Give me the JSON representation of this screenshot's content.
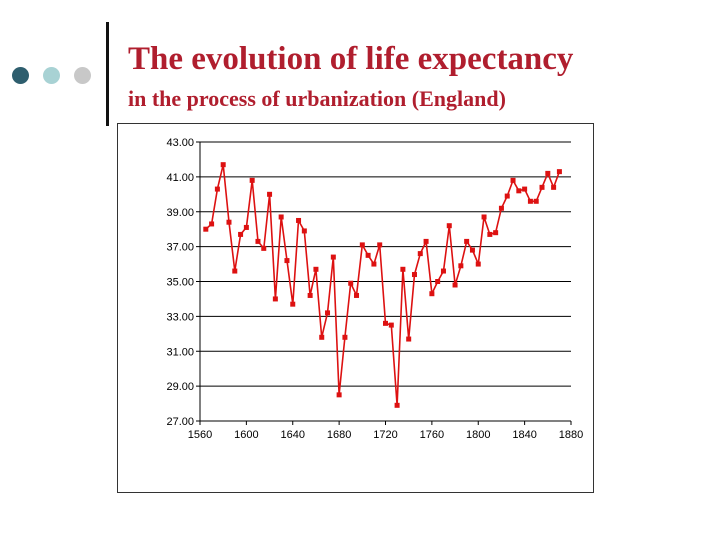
{
  "slide": {
    "title": "The evolution of life expectancy",
    "subtitle": "in the process of urbanization (England)",
    "accent_color": "#b01e2e",
    "bullet_colors": [
      "#2e5e6e",
      "#a8d2d4",
      "#c8c8c8"
    ]
  },
  "chart_data": {
    "type": "line",
    "title": "",
    "xlabel": "",
    "ylabel": "",
    "xlim": [
      1560,
      1880
    ],
    "ylim": [
      27.0,
      43.0
    ],
    "x_ticks": [
      "1560",
      "1600",
      "1640",
      "1680",
      "1720",
      "1760",
      "1800",
      "1840",
      "1880"
    ],
    "y_ticks": [
      "43.00",
      "41.00",
      "39.00",
      "37.00",
      "35.00",
      "33.00",
      "31.00",
      "29.00",
      "27.00"
    ],
    "grid": "horizontal",
    "legend": "none",
    "series": [
      {
        "color": "#dd1111",
        "marker": "square",
        "x": [
          1565,
          1570,
          1575,
          1580,
          1585,
          1590,
          1595,
          1600,
          1605,
          1610,
          1615,
          1620,
          1625,
          1630,
          1635,
          1640,
          1645,
          1650,
          1655,
          1660,
          1665,
          1670,
          1675,
          1680,
          1685,
          1690,
          1695,
          1700,
          1705,
          1710,
          1715,
          1720,
          1725,
          1730,
          1735,
          1740,
          1745,
          1750,
          1755,
          1760,
          1765,
          1770,
          1775,
          1780,
          1785,
          1790,
          1795,
          1800,
          1805,
          1810,
          1815,
          1820,
          1825,
          1830,
          1835,
          1840,
          1845,
          1850,
          1855,
          1860,
          1865,
          1870
        ],
        "values": [
          38.0,
          38.3,
          40.3,
          41.7,
          38.4,
          35.6,
          37.7,
          38.1,
          40.8,
          37.3,
          36.9,
          40.0,
          34.0,
          38.7,
          36.2,
          33.7,
          38.5,
          37.9,
          34.2,
          35.7,
          31.8,
          33.2,
          36.4,
          28.5,
          31.8,
          34.9,
          34.2,
          37.1,
          36.5,
          36.0,
          37.1,
          32.6,
          32.5,
          27.9,
          35.7,
          31.7,
          35.4,
          36.6,
          37.3,
          34.3,
          35.0,
          35.6,
          38.2,
          34.8,
          35.9,
          37.3,
          36.8,
          36.0,
          38.7,
          37.7,
          37.8,
          39.2,
          39.9,
          40.8,
          40.2,
          40.3,
          39.6,
          39.6,
          40.4,
          41.2,
          40.4,
          41.3
        ]
      }
    ]
  }
}
